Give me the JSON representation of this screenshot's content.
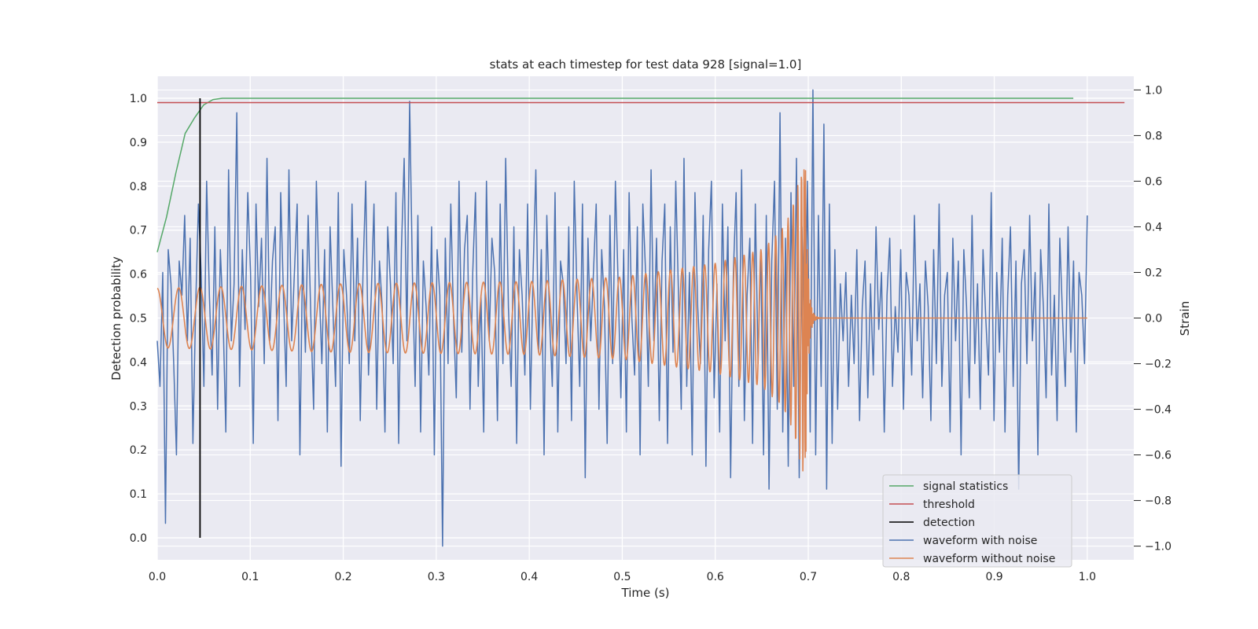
{
  "chart_data": {
    "type": "line",
    "title": "stats at each timestep for test data 928 [signal=1.0]",
    "xlabel": "Time (s)",
    "ylabel": "Detection probability",
    "y2label": "Strain",
    "xlim": [
      0.0,
      1.05
    ],
    "ylim": [
      -0.05,
      1.05
    ],
    "y2lim": [
      -1.06,
      1.06
    ],
    "x_ticks": [
      "0.0",
      "0.1",
      "0.2",
      "0.3",
      "0.4",
      "0.5",
      "0.6",
      "0.7",
      "0.8",
      "0.9",
      "1.0"
    ],
    "y_ticks": [
      "0.0",
      "0.1",
      "0.2",
      "0.3",
      "0.4",
      "0.5",
      "0.6",
      "0.7",
      "0.8",
      "0.9",
      "1.0"
    ],
    "y2_ticks": [
      "−1.0",
      "−0.8",
      "−0.6",
      "−0.4",
      "−0.2",
      "0.0",
      "0.2",
      "0.4",
      "0.6",
      "0.8",
      "1.0"
    ],
    "grid": true,
    "legend_position": "bottom-right",
    "legend": [
      {
        "label": "signal statistics",
        "color": "#55a868"
      },
      {
        "label": "threshold",
        "color": "#c44e52"
      },
      {
        "label": "detection",
        "color": "#000000"
      },
      {
        "label": "waveform with noise",
        "color": "#4c72b0"
      },
      {
        "label": "waveform without noise",
        "color": "#dd8452"
      }
    ],
    "series": [
      {
        "name": "signal statistics",
        "axis": "left",
        "color": "#55a868",
        "x": [
          0.0,
          0.01,
          0.02,
          0.03,
          0.04,
          0.05,
          0.06,
          0.07,
          0.08,
          0.1,
          0.985
        ],
        "y": [
          0.65,
          0.73,
          0.83,
          0.92,
          0.955,
          0.985,
          0.997,
          1.0,
          1.0,
          1.0,
          1.0
        ]
      },
      {
        "name": "threshold",
        "axis": "left",
        "color": "#c44e52",
        "x": [
          0.0,
          1.04
        ],
        "y": [
          0.99,
          0.99
        ]
      },
      {
        "name": "detection",
        "axis": "left",
        "color": "#000000",
        "x": [
          0.046,
          0.046
        ],
        "y": [
          0.0,
          1.0
        ]
      },
      {
        "name": "waveform with noise",
        "axis": "right",
        "color": "#4c72b0",
        "x_range": [
          0.0,
          1.0
        ],
        "samples": [
          -0.1,
          -0.3,
          0.2,
          -0.9,
          0.3,
          0.15,
          -0.2,
          -0.6,
          0.25,
          0.1,
          0.45,
          -0.1,
          0.35,
          -0.55,
          0.05,
          0.5,
          0.2,
          -0.3,
          0.6,
          0.1,
          -0.25,
          0.4,
          -0.4,
          0.3,
          0.0,
          -0.5,
          0.65,
          -0.1,
          0.15,
          0.9,
          -0.3,
          0.3,
          -0.05,
          0.55,
          0.2,
          -0.55,
          0.5,
          0.05,
          0.35,
          -0.2,
          0.7,
          -0.1,
          0.25,
          0.4,
          -0.45,
          0.55,
          0.1,
          -0.3,
          0.65,
          -0.1,
          0.2,
          0.5,
          -0.6,
          0.3,
          -0.15,
          0.45,
          0.0,
          -0.4,
          0.6,
          0.15,
          -0.2,
          0.3,
          -0.5,
          0.4,
          0.05,
          -0.3,
          0.55,
          -0.65,
          0.3,
          0.1,
          -0.2,
          0.5,
          -0.1,
          0.35,
          -0.45,
          0.2,
          0.6,
          -0.25,
          0.1,
          0.5,
          -0.4,
          0.25,
          0.05,
          -0.5,
          0.4,
          0.15,
          -0.2,
          0.55,
          -0.55,
          0.3,
          0.7,
          -0.1,
          0.95,
          0.2,
          -0.3,
          0.45,
          -0.5,
          0.25,
          0.05,
          -0.25,
          0.4,
          -0.6,
          0.3,
          0.1,
          -1.0,
          0.35,
          -0.2,
          0.5,
          0.0,
          -0.35,
          0.6,
          -0.15,
          0.3,
          0.45,
          -0.4,
          0.2,
          0.55,
          -0.3,
          0.1,
          -0.5,
          0.6,
          -0.1,
          0.35,
          0.2,
          -0.45,
          0.5,
          -0.2,
          0.7,
          0.05,
          -0.3,
          0.4,
          -0.55,
          0.3,
          0.1,
          -0.25,
          0.5,
          -0.4,
          0.2,
          0.65,
          -0.15,
          0.3,
          -0.6,
          0.45,
          0.0,
          -0.3,
          0.55,
          -0.5,
          0.25,
          0.15,
          -0.2,
          0.4,
          -0.45,
          0.6,
          0.1,
          -0.3,
          0.5,
          -0.7,
          0.35,
          -0.1,
          0.2,
          0.5,
          -0.4,
          0.3,
          0.05,
          -0.55,
          0.45,
          -0.2,
          0.6,
          0.15,
          -0.35,
          0.3,
          -0.5,
          0.55,
          0.0,
          -0.25,
          0.4,
          -0.6,
          0.5,
          0.2,
          -0.3,
          0.65,
          -0.1,
          0.35,
          -0.45,
          0.25,
          0.5,
          -0.55,
          0.4,
          -0.15,
          0.6,
          0.1,
          -0.4,
          0.7,
          -0.3,
          0.2,
          -0.6,
          0.55,
          0.05,
          -0.2,
          0.45,
          -0.65,
          0.3,
          0.6,
          -0.35,
          0.15,
          -0.5,
          0.5,
          -0.1,
          0.4,
          -0.7,
          0.2,
          0.55,
          -0.3,
          0.65,
          -0.45,
          0.1,
          0.35,
          -0.55,
          0.5,
          -0.2,
          0.3,
          -0.6,
          0.45,
          -0.75,
          0.25,
          0.6,
          -0.4,
          0.9,
          -0.5,
          0.35,
          -0.65,
          0.55,
          -0.3,
          0.7,
          -0.7,
          0.4,
          -0.2,
          0.6,
          -0.5,
          1.0,
          -0.6,
          0.45,
          -0.3,
          0.85,
          -0.75,
          0.5,
          -0.55,
          0.3,
          -0.4,
          0.15,
          -0.1,
          0.2,
          -0.3,
          0.1,
          -0.2,
          0.3,
          -0.45,
          0.05,
          0.25,
          -0.35,
          0.15,
          -0.25,
          0.4,
          -0.05,
          0.2,
          -0.5,
          0.1,
          0.35,
          -0.3,
          0.05,
          -0.15,
          0.3,
          -0.4,
          0.2,
          0.1,
          -0.25,
          0.45,
          -0.1,
          0.15,
          -0.35,
          0.25,
          0.05,
          -0.45,
          0.3,
          -0.2,
          0.5,
          -0.3,
          0.1,
          0.2,
          -0.5,
          0.35,
          -0.1,
          0.25,
          -0.6,
          0.3,
          0.05,
          -0.35,
          0.45,
          -0.2,
          0.15,
          -0.4,
          0.3,
          0.0,
          -0.25,
          0.55,
          -0.45,
          0.2,
          -0.15,
          0.35,
          -0.5,
          0.1,
          0.4,
          -0.3,
          0.25,
          -0.75,
          0.15,
          0.3,
          -0.2,
          0.45,
          -0.1,
          0.2,
          -0.6,
          0.3,
          0.05,
          -0.35,
          0.5,
          -0.25,
          0.1,
          -0.45,
          0.35,
          0.0,
          -0.3,
          0.4,
          -0.15,
          0.25,
          -0.5,
          0.2,
          0.1,
          -0.2,
          0.45
        ]
      },
      {
        "name": "waveform without noise",
        "axis": "right",
        "color": "#dd8452",
        "x_range": [
          0.0,
          1.0
        ],
        "merger_time": 0.697,
        "envelope_x": [
          0.0,
          0.2,
          0.4,
          0.5,
          0.6,
          0.65,
          0.67,
          0.68,
          0.69,
          0.697
        ],
        "envelope_y": [
          0.13,
          0.15,
          0.16,
          0.18,
          0.24,
          0.3,
          0.38,
          0.45,
          0.6,
          0.75
        ],
        "cycles_before_merger": 48
      }
    ]
  }
}
